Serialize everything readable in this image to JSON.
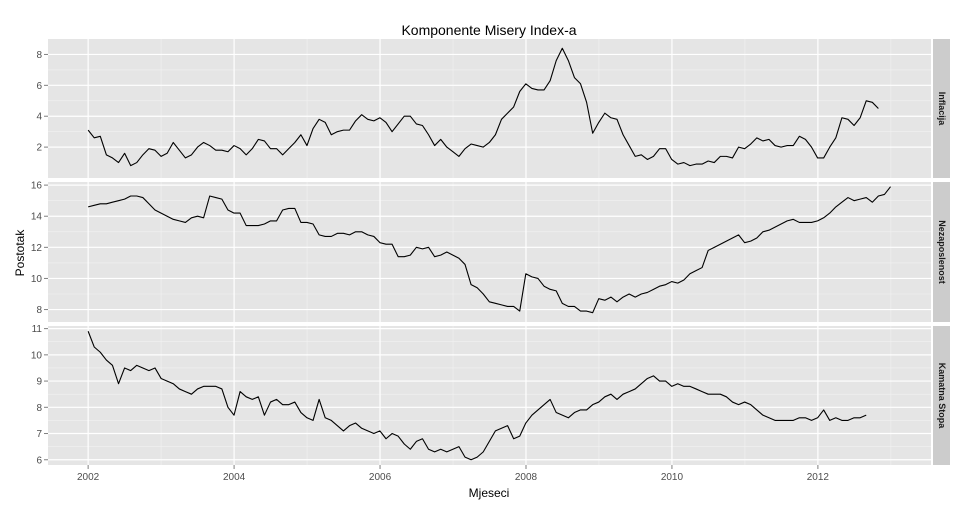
{
  "chart_data": {
    "type": "line",
    "title": "Komponente Misery Index-a",
    "xlabel": "Mjeseci",
    "ylabel": "Postotak",
    "xlim": [
      2001.45,
      2013.55
    ],
    "x_ticks": [
      2002,
      2004,
      2006,
      2008,
      2010,
      2012
    ],
    "x_tick_labels": [
      "2002",
      "2004",
      "2006",
      "2008",
      "2010",
      "2012"
    ],
    "grid": true,
    "colors": {
      "panel_bg": "#e5e5e5",
      "grid": "#ffffff",
      "strip_bg": "#cccccc",
      "line": "#000000"
    },
    "panels": [
      {
        "name": "Inflacija",
        "ylim": [
          0.0,
          9.0
        ],
        "y_ticks": [
          2,
          4,
          6,
          8
        ],
        "x_start": 2002.0,
        "x_step": 0.0833,
        "values": [
          3.1,
          2.6,
          2.7,
          1.5,
          1.3,
          1.0,
          1.6,
          0.8,
          1.0,
          1.5,
          1.9,
          1.8,
          1.4,
          1.6,
          2.3,
          1.8,
          1.3,
          1.5,
          2.0,
          2.3,
          2.1,
          1.8,
          1.8,
          1.7,
          2.1,
          1.9,
          1.5,
          1.9,
          2.5,
          2.4,
          1.9,
          1.9,
          1.5,
          1.9,
          2.3,
          2.8,
          2.1,
          3.2,
          3.8,
          3.6,
          2.8,
          3.0,
          3.1,
          3.1,
          3.7,
          4.1,
          3.8,
          3.7,
          3.9,
          3.6,
          3.0,
          3.5,
          4.0,
          4.0,
          3.5,
          3.4,
          2.8,
          2.1,
          2.5,
          2.0,
          1.7,
          1.4,
          1.9,
          2.2,
          2.1,
          2.0,
          2.3,
          2.8,
          3.8,
          4.2,
          4.6,
          5.6,
          6.1,
          5.8,
          5.7,
          5.7,
          6.3,
          7.6,
          8.4,
          7.6,
          6.5,
          6.1,
          4.9,
          2.9,
          3.6,
          4.2,
          3.9,
          3.8,
          2.8,
          2.1,
          1.4,
          1.5,
          1.2,
          1.4,
          1.9,
          1.9,
          1.2,
          0.9,
          1.0,
          0.8,
          0.9,
          0.9,
          1.1,
          1.0,
          1.4,
          1.4,
          1.3,
          2.0,
          1.9,
          2.2,
          2.6,
          2.4,
          2.5,
          2.1,
          2.0,
          2.1,
          2.1,
          2.7,
          2.5,
          2.0,
          1.3,
          1.3,
          2.0,
          2.6,
          3.9,
          3.8,
          3.4,
          3.9,
          5.0,
          4.9,
          4.5
        ]
      },
      {
        "name": "Nezaposlenost",
        "ylim": [
          7.2,
          16.2
        ],
        "y_ticks": [
          8,
          10,
          12,
          14,
          16
        ],
        "x_start": 2002.0,
        "x_step": 0.0833,
        "values": [
          14.6,
          14.7,
          14.8,
          14.8,
          14.9,
          15.0,
          15.1,
          15.3,
          15.3,
          15.2,
          14.8,
          14.4,
          14.2,
          14.0,
          13.8,
          13.7,
          13.6,
          13.9,
          14.0,
          13.9,
          15.3,
          15.2,
          15.1,
          14.4,
          14.2,
          14.2,
          13.4,
          13.4,
          13.4,
          13.5,
          13.7,
          13.7,
          14.4,
          14.5,
          14.5,
          13.6,
          13.6,
          13.5,
          12.8,
          12.7,
          12.7,
          12.9,
          12.9,
          12.8,
          13.0,
          13.0,
          12.8,
          12.7,
          12.3,
          12.2,
          12.2,
          11.4,
          11.4,
          11.5,
          12.0,
          11.9,
          12.0,
          11.4,
          11.5,
          11.7,
          11.5,
          11.3,
          10.9,
          9.6,
          9.4,
          9.0,
          8.5,
          8.4,
          8.3,
          8.2,
          8.2,
          7.9,
          10.3,
          10.1,
          10.0,
          9.5,
          9.3,
          9.2,
          8.4,
          8.2,
          8.2,
          7.9,
          7.9,
          7.8,
          8.7,
          8.6,
          8.8,
          8.5,
          8.8,
          9.0,
          8.8,
          9.0,
          9.1,
          9.3,
          9.5,
          9.6,
          9.8,
          9.7,
          9.9,
          10.3,
          10.5,
          10.7,
          11.8,
          12.0,
          12.2,
          12.4,
          12.6,
          12.8,
          12.3,
          12.4,
          12.6,
          13.0,
          13.1,
          13.3,
          13.5,
          13.7,
          13.8,
          13.6,
          13.6,
          13.6,
          13.7,
          13.9,
          14.2,
          14.6,
          14.9,
          15.2,
          15.0,
          15.1,
          15.2,
          14.9,
          15.3,
          15.4,
          15.9
        ]
      },
      {
        "name": "Kamatna Stopa",
        "ylim": [
          5.8,
          11.1
        ],
        "y_ticks": [
          6,
          7,
          8,
          9,
          10,
          11
        ],
        "x_start": 2002.0,
        "x_step": 0.0833,
        "values": [
          10.9,
          10.3,
          10.1,
          9.8,
          9.6,
          8.9,
          9.5,
          9.4,
          9.6,
          9.5,
          9.4,
          9.5,
          9.1,
          9.0,
          8.9,
          8.7,
          8.6,
          8.5,
          8.7,
          8.8,
          8.8,
          8.8,
          8.7,
          8.0,
          7.7,
          8.6,
          8.4,
          8.3,
          8.4,
          7.7,
          8.2,
          8.3,
          8.1,
          8.1,
          8.2,
          7.8,
          7.6,
          7.5,
          8.3,
          7.6,
          7.5,
          7.3,
          7.1,
          7.3,
          7.4,
          7.2,
          7.1,
          7.0,
          7.1,
          6.8,
          7.0,
          6.9,
          6.6,
          6.4,
          6.7,
          6.8,
          6.4,
          6.3,
          6.4,
          6.3,
          6.4,
          6.5,
          6.1,
          6.0,
          6.1,
          6.3,
          6.7,
          7.1,
          7.2,
          7.3,
          6.8,
          6.9,
          7.4,
          7.7,
          7.9,
          8.1,
          8.3,
          7.8,
          7.7,
          7.6,
          7.8,
          7.9,
          7.9,
          8.1,
          8.2,
          8.4,
          8.5,
          8.3,
          8.5,
          8.6,
          8.7,
          8.9,
          9.1,
          9.2,
          9.0,
          9.0,
          8.8,
          8.9,
          8.8,
          8.8,
          8.7,
          8.6,
          8.5,
          8.5,
          8.5,
          8.4,
          8.2,
          8.1,
          8.2,
          8.1,
          7.9,
          7.7,
          7.6,
          7.5,
          7.5,
          7.5,
          7.5,
          7.6,
          7.6,
          7.5,
          7.6,
          7.9,
          7.5,
          7.6,
          7.5,
          7.5,
          7.6,
          7.6,
          7.7
        ]
      }
    ]
  }
}
